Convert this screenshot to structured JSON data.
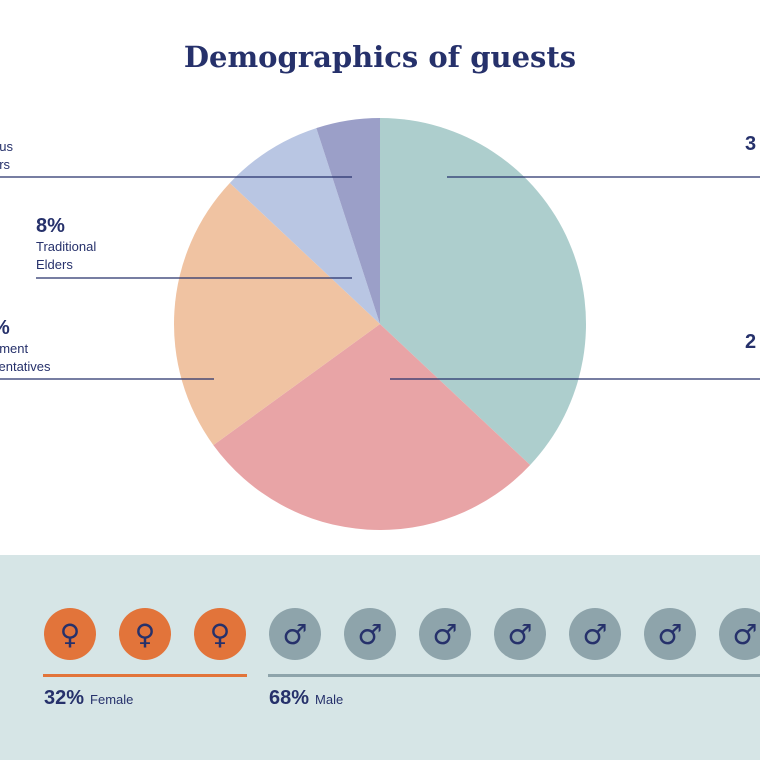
{
  "chart_data": {
    "type": "pie",
    "title": "Demographics of guests",
    "slices": [
      {
        "label": "",
        "pct_text": "3",
        "value": 37,
        "color": "#adcecd"
      },
      {
        "label": "",
        "pct_text": "2",
        "value": 28,
        "color": "#e8a4a6"
      },
      {
        "label": "nment\nsentatives",
        "pct_text": "%",
        "value": 22,
        "color": "#f0c3a2"
      },
      {
        "label": "Traditional\nElders",
        "pct_text": "8%",
        "value": 8,
        "color": "#b9c6e3"
      },
      {
        "label": "ous\ners",
        "pct_text": "",
        "value": 5,
        "color": "#9b9fc8"
      }
    ]
  },
  "gender": {
    "female": {
      "caption_pct": "32%",
      "caption_label": "Female",
      "symbol": "♀",
      "count": 3,
      "color": "#e2743a",
      "line_color": "#e2743a"
    },
    "male": {
      "caption_pct": "68%",
      "caption_label": "Male",
      "symbol": "♂",
      "count": 7,
      "color": "#8ea4ab",
      "line_color": "#8ea4ab"
    }
  }
}
